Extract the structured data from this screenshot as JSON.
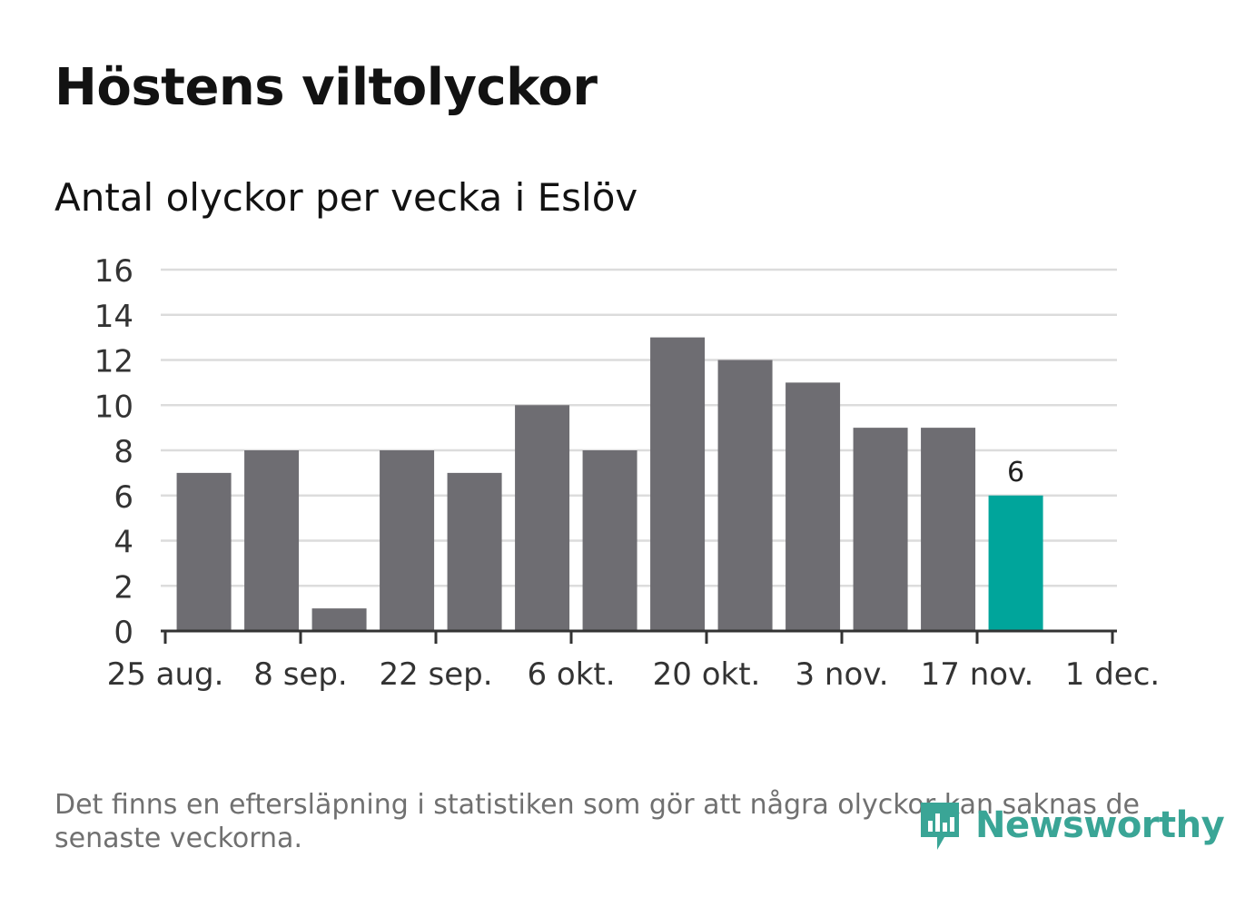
{
  "title": "Höstens viltolyckor",
  "subtitle": "Antal olyckor per vecka i Eslöv",
  "footnote": "Det finns en eftersläpning i statistiken som gör att några olyckor kan saknas de senaste veckorna.",
  "logo_text": "Newsworthy",
  "colors": {
    "bar": "#6e6d72",
    "highlight": "#00a59b",
    "grid": "#dcdcdc",
    "axis": "#333333",
    "logo": "#3aa596"
  },
  "chart_data": {
    "type": "bar",
    "title": "Höstens viltolyckor",
    "subtitle": "Antal olyckor per vecka i Eslöv",
    "x": [
      "2019-08-26",
      "2019-09-02",
      "2019-09-09",
      "2019-09-16",
      "2019-09-23",
      "2019-09-30",
      "2019-10-07",
      "2019-10-14",
      "2019-10-21",
      "2019-10-28",
      "2019-11-04",
      "2019-11-11",
      "2019-11-18"
    ],
    "values": [
      7,
      8,
      1,
      8,
      7,
      10,
      8,
      13,
      12,
      11,
      9,
      9,
      6
    ],
    "highlight_index": 12,
    "data_labels": [
      {
        "index": 12,
        "text": "6"
      }
    ],
    "yticks": [
      "0",
      "2",
      "4",
      "6",
      "8",
      "10",
      "12",
      "14",
      "16"
    ],
    "ylim": [
      0,
      16
    ],
    "xticks": [
      "25 aug.",
      "8 sep.",
      "22 sep.",
      "6 okt.",
      "20 okt.",
      "3 nov.",
      "17 nov.",
      "1 dec."
    ],
    "xtick_dates": [
      "2019-08-25",
      "2019-09-08",
      "2019-09-22",
      "2019-10-06",
      "2019-10-20",
      "2019-11-03",
      "2019-11-17",
      "2019-12-01"
    ],
    "xlim": [
      "2019-08-25",
      "2019-12-01"
    ],
    "grid": true,
    "legend": "none"
  }
}
